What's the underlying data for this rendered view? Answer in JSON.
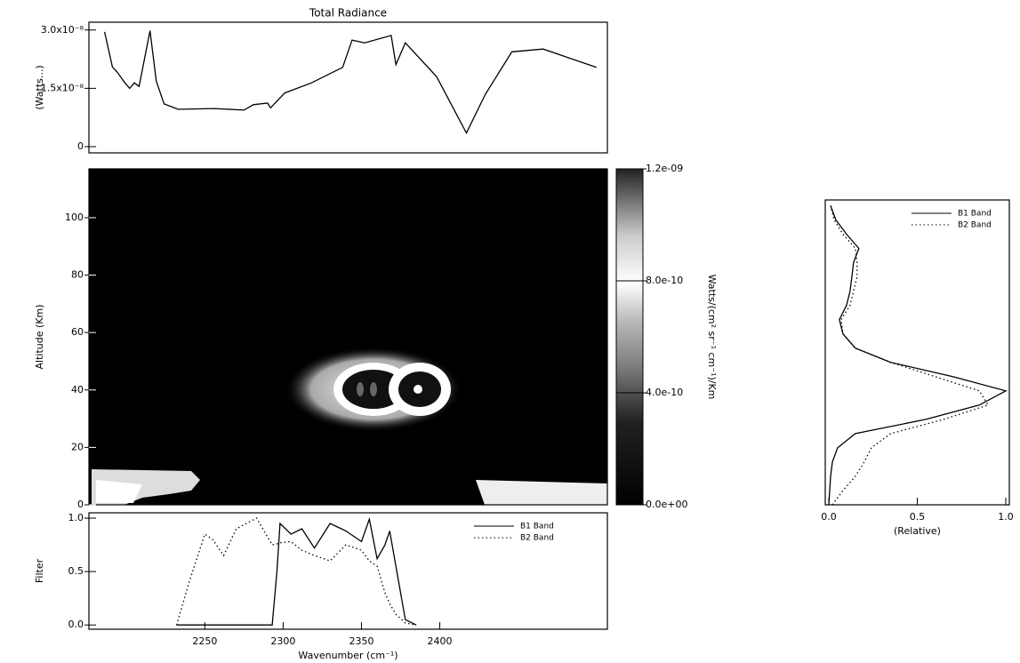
{
  "chart_data": [
    {
      "type": "line",
      "title": "Total Radiance",
      "ylabel": "(Watts...)",
      "x": [
        2186,
        2191,
        2194,
        2199,
        2202,
        2205,
        2208,
        2215,
        2219,
        2224,
        2233,
        2256,
        2275,
        2281,
        2290,
        2292,
        2301,
        2318,
        2338,
        2344,
        2352,
        2369,
        2372,
        2378,
        2398,
        2417,
        2429,
        2446,
        2466,
        2500
      ],
      "series": [
        {
          "name": "Total Radiance",
          "color": "#000000",
          "linestyle": "solid",
          "values": [
            2.95e-08,
            2.05e-08,
            1.92e-08,
            1.64e-08,
            1.5e-08,
            1.64e-08,
            1.55e-08,
            2.98e-08,
            1.69e-08,
            1.1e-08,
            9.6e-09,
            9.8e-09,
            9.4e-09,
            1.08e-08,
            1.12e-08,
            1e-08,
            1.38e-08,
            1.64e-08,
            2.04e-08,
            2.74e-08,
            2.67e-08,
            2.86e-08,
            2.11e-08,
            2.67e-08,
            1.8e-08,
            3.5e-09,
            1.34e-08,
            2.44e-08,
            2.51e-08,
            2.04e-08
          ]
        }
      ],
      "xlim": [
        2176,
        2507
      ],
      "ylim": [
        -1.6e-09,
        3.2e-08
      ],
      "yticks": [
        0,
        {
          "value": 1.5e-08,
          "label": "1.5x10⁻⁸"
        },
        {
          "value": 3e-08,
          "label": "3.0x10⁻⁸"
        }
      ]
    },
    {
      "type": "contour",
      "ylabel": "Altitude (Km)",
      "ylim": [
        0,
        117
      ],
      "yticks": [
        0,
        20,
        40,
        60,
        80,
        100
      ],
      "colorbar": {
        "label": "Watts/(cm² sr⁻¹ cm⁻¹)/Km",
        "ylim": [
          0,
          1.2e-09
        ],
        "yticks": [
          {
            "value": 0,
            "label": "0.0e+00"
          },
          {
            "value": 4e-10,
            "label": "4.0e-10"
          },
          {
            "value": 8e-10,
            "label": "8.0e-10"
          },
          {
            "value": 1.2e-09,
            "label": "1.2e-09"
          }
        ]
      }
    },
    {
      "type": "line",
      "ylabel": "Filter",
      "xlabel": "Wavenumber (cm⁻¹)",
      "legend": "upper right",
      "x": [
        2232,
        2240,
        2250,
        2255,
        2262,
        2270,
        2283,
        2293,
        2296,
        2298,
        2305,
        2312,
        2320,
        2330,
        2340,
        2350,
        2355,
        2360,
        2365,
        2368,
        2372,
        2378,
        2385
      ],
      "series": [
        {
          "name": "B1 Band",
          "color": "#000000",
          "linestyle": "solid",
          "values": [
            0,
            0,
            0,
            0,
            0,
            0,
            0,
            0,
            0.5,
            0.95,
            0.85,
            0.9,
            0.72,
            0.95,
            0.88,
            0.78,
            0.99,
            0.62,
            0.75,
            0.88,
            0.55,
            0.05,
            0
          ]
        },
        {
          "name": "B2 Band",
          "color": "#000000",
          "linestyle": "dotted",
          "values": [
            0,
            0.4,
            0.85,
            0.8,
            0.65,
            0.9,
            1.0,
            0.75,
            0.76,
            0.77,
            0.78,
            0.7,
            0.65,
            0.6,
            0.75,
            0.7,
            0.6,
            0.55,
            0.3,
            0.2,
            0.1,
            0.02,
            0
          ]
        }
      ],
      "xlim": [
        2176,
        2507
      ],
      "ylim": [
        -0.04,
        1.05
      ],
      "xticks": [
        2250,
        2300,
        2350,
        2400
      ],
      "yticks": [
        {
          "value": 0,
          "label": "0.0"
        },
        0.5,
        {
          "value": 1,
          "label": "1.0"
        }
      ]
    },
    {
      "type": "line",
      "xlabel": "(Relative)",
      "legend": "upper right",
      "y": [
        0,
        5,
        10,
        15,
        20,
        25,
        30,
        35,
        40,
        45,
        50,
        55,
        60,
        65,
        70,
        75,
        80,
        85,
        90,
        95,
        100,
        105
      ],
      "series": [
        {
          "name": "B1 Band",
          "color": "#000000",
          "linestyle": "solid",
          "values": [
            0,
            0.005,
            0.01,
            0.02,
            0.05,
            0.15,
            0.55,
            0.85,
            1.0,
            0.7,
            0.35,
            0.15,
            0.08,
            0.06,
            0.1,
            0.12,
            0.13,
            0.14,
            0.17,
            0.1,
            0.04,
            0.01
          ]
        },
        {
          "name": "B2 Band",
          "color": "#000000",
          "linestyle": "dotted",
          "values": [
            0.02,
            0.08,
            0.15,
            0.2,
            0.24,
            0.35,
            0.65,
            0.9,
            0.85,
            0.6,
            0.35,
            0.15,
            0.08,
            0.07,
            0.12,
            0.14,
            0.16,
            0.16,
            0.15,
            0.08,
            0.03,
            0.01
          ]
        }
      ],
      "xlim": [
        -0.02,
        1.02
      ],
      "ylim": [
        0,
        107
      ],
      "xticks": [
        {
          "value": 0,
          "label": "0.0"
        },
        0.5,
        {
          "value": 1,
          "label": "1.0"
        }
      ]
    }
  ]
}
